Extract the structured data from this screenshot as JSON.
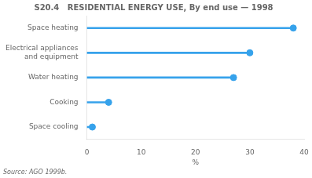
{
  "chart_data": {
    "type": "lollipop",
    "orientation": "horizontal",
    "title": "S20.4   RESIDENTIAL ENERGY USE, By end use — 1998",
    "categories": [
      "Space heating",
      "Electrical appliances\nand equipment",
      "Water heating",
      "Cooking",
      "Space cooling"
    ],
    "values": [
      38,
      30,
      27,
      4,
      1
    ],
    "xlabel": "%",
    "xlim": [
      0,
      40
    ],
    "xticks": [
      0,
      10,
      20,
      30,
      40
    ],
    "annotations": [
      "Source: AGO 1999b."
    ],
    "grid": false
  }
}
